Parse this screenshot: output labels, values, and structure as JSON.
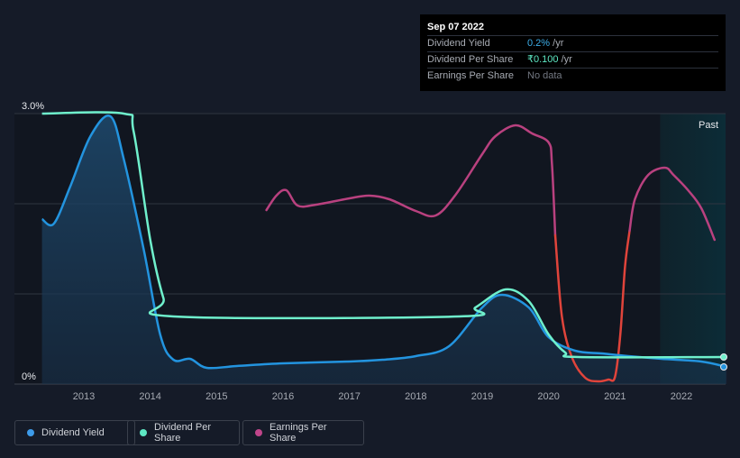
{
  "tooltip": {
    "date": "Sep 07 2022",
    "rows": [
      {
        "label": "Dividend Yield",
        "value": "0.2%",
        "unit": " /yr",
        "color": "#3daee9"
      },
      {
        "label": "Dividend Per Share",
        "value": "₹0.100",
        "unit": " /yr",
        "color": "#5ee8c4"
      },
      {
        "label": "Earnings Per Share",
        "value": "No data",
        "unit": "",
        "color": "#737882"
      }
    ]
  },
  "legend": [
    {
      "label": "Dividend Yield",
      "color": "#3d9be9"
    },
    {
      "label": "Dividend Per Share",
      "color": "#5ee8c4"
    },
    {
      "label": "Earnings Per Share",
      "color": "#c0458a"
    }
  ],
  "chart_data": {
    "type": "line",
    "x_ticks": [
      "2013",
      "2014",
      "2015",
      "2016",
      "2017",
      "2018",
      "2019",
      "2020",
      "2021",
      "2022"
    ],
    "y_ticks": [
      "0%",
      "3.0%"
    ],
    "x_range": [
      2012.37,
      2022.68
    ],
    "y_range": [
      0,
      3.0
    ],
    "past_label": "Past",
    "past_start": 2021.68,
    "grid": true,
    "colors": {
      "dividend_yield": "#2394df",
      "dividend_per_share": "#6ff0cc",
      "earnings_per_share": "#b9417f",
      "earnings_negative": "#e0443b"
    },
    "series": [
      {
        "name": "Dividend Yield",
        "key": "dividend_yield",
        "points": [
          [
            2012.37,
            1.83
          ],
          [
            2012.55,
            1.78
          ],
          [
            2012.8,
            2.2
          ],
          [
            2013.1,
            2.75
          ],
          [
            2013.4,
            2.97
          ],
          [
            2013.6,
            2.5
          ],
          [
            2013.9,
            1.5
          ],
          [
            2014.15,
            0.55
          ],
          [
            2014.35,
            0.27
          ],
          [
            2014.6,
            0.28
          ],
          [
            2014.85,
            0.18
          ],
          [
            2015.3,
            0.2
          ],
          [
            2016,
            0.23
          ],
          [
            2017,
            0.25
          ],
          [
            2017.5,
            0.27
          ],
          [
            2018,
            0.31
          ],
          [
            2018.5,
            0.42
          ],
          [
            2019.0,
            0.85
          ],
          [
            2019.3,
            0.99
          ],
          [
            2019.7,
            0.85
          ],
          [
            2020.0,
            0.52
          ],
          [
            2020.4,
            0.37
          ],
          [
            2020.8,
            0.34
          ],
          [
            2021.2,
            0.31
          ],
          [
            2021.7,
            0.28
          ],
          [
            2022.3,
            0.25
          ],
          [
            2022.68,
            0.19
          ]
        ]
      },
      {
        "name": "Dividend Per Share",
        "key": "dividend_per_share",
        "points": [
          [
            2012.37,
            3.0
          ],
          [
            2013.6,
            3.0
          ],
          [
            2013.75,
            2.8
          ],
          [
            2014.0,
            1.6
          ],
          [
            2014.2,
            0.95
          ],
          [
            2014.35,
            0.75
          ],
          [
            2018.65,
            0.75
          ],
          [
            2018.9,
            0.85
          ],
          [
            2019.35,
            1.05
          ],
          [
            2019.7,
            0.92
          ],
          [
            2020.0,
            0.55
          ],
          [
            2020.25,
            0.35
          ],
          [
            2020.45,
            0.3
          ],
          [
            2022.68,
            0.3
          ]
        ]
      },
      {
        "name": "Earnings Per Share",
        "key": "earnings_per_share",
        "segments": [
          {
            "sign": "positive",
            "points": [
              [
                2015.75,
                1.93
              ],
              [
                2015.9,
                2.09
              ],
              [
                2016.05,
                2.15
              ],
              [
                2016.22,
                1.98
              ],
              [
                2016.5,
                1.99
              ],
              [
                2017.0,
                2.06
              ],
              [
                2017.3,
                2.09
              ],
              [
                2017.6,
                2.05
              ],
              [
                2018.0,
                1.92
              ],
              [
                2018.3,
                1.87
              ],
              [
                2018.6,
                2.1
              ],
              [
                2019.0,
                2.55
              ],
              [
                2019.2,
                2.75
              ],
              [
                2019.5,
                2.87
              ],
              [
                2019.75,
                2.78
              ],
              [
                2020.0,
                2.68
              ],
              [
                2020.05,
                2.45
              ],
              [
                2020.1,
                1.65
              ]
            ]
          },
          {
            "sign": "negative",
            "points": [
              [
                2020.1,
                1.65
              ],
              [
                2020.2,
                0.75
              ],
              [
                2020.35,
                0.3
              ],
              [
                2020.55,
                0.07
              ],
              [
                2020.75,
                0.03
              ],
              [
                2020.9,
                0.05
              ],
              [
                2021.0,
                0.08
              ],
              [
                2021.08,
                0.55
              ],
              [
                2021.15,
                1.3
              ],
              [
                2021.22,
                1.7
              ]
            ]
          },
          {
            "sign": "positive",
            "points": [
              [
                2021.22,
                1.7
              ],
              [
                2021.3,
                2.05
              ],
              [
                2021.5,
                2.32
              ],
              [
                2021.75,
                2.4
              ],
              [
                2021.88,
                2.32
              ],
              [
                2022.1,
                2.15
              ],
              [
                2022.3,
                1.95
              ],
              [
                2022.5,
                1.6
              ]
            ]
          }
        ]
      }
    ],
    "end_markers": [
      {
        "series": "dividend_per_share",
        "value": 0.3
      },
      {
        "series": "dividend_yield",
        "value": 0.19
      }
    ]
  }
}
